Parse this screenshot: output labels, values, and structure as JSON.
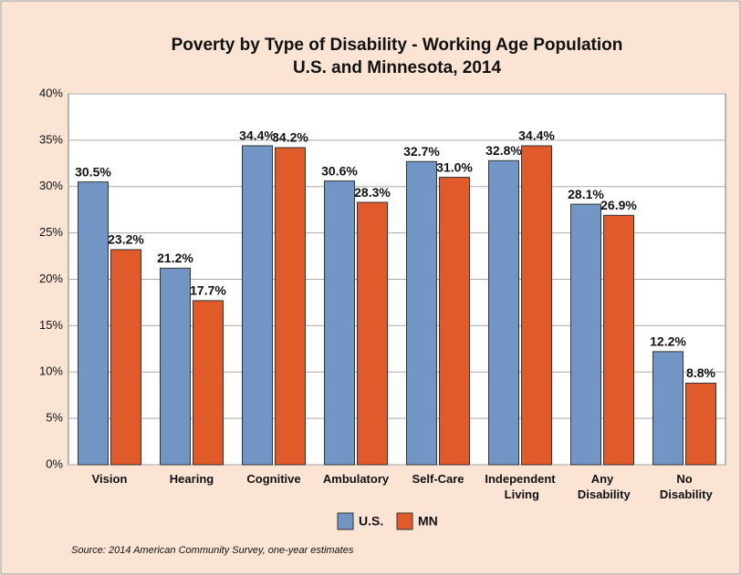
{
  "chart_data": {
    "type": "bar",
    "title": "Poverty by Type of Disability - Working Age Population",
    "subtitle": "U.S. and Minnesota, 2014",
    "categories": [
      "Vision",
      "Hearing",
      "Cognitive",
      "Ambulatory",
      "Self-Care",
      "Independent Living",
      "Any Disability",
      "No Disability"
    ],
    "series": [
      {
        "name": "U.S.",
        "color": "#7196c6",
        "values": [
          30.5,
          21.2,
          34.4,
          30.6,
          32.7,
          32.8,
          28.1,
          12.2
        ],
        "value_labels": [
          "30.5%",
          "21.2%",
          "34.4%",
          "30.6%",
          "32.7%",
          "32.8%",
          "28.1%",
          "12.2%"
        ]
      },
      {
        "name": "MN",
        "color": "#e05a2a",
        "values": [
          23.2,
          17.7,
          34.2,
          28.3,
          31.0,
          34.4,
          26.9,
          8.8
        ],
        "value_labels": [
          "23.2%",
          "17.7%",
          "34.2%",
          "28.3%",
          "31.0%",
          "34.4%",
          "26.9%",
          "8.8%"
        ]
      }
    ],
    "ylim": [
      0,
      40
    ],
    "yticks": [
      {
        "value": 0,
        "label": "0%"
      },
      {
        "value": 5,
        "label": "5%"
      },
      {
        "value": 10,
        "label": "10%"
      },
      {
        "value": 15,
        "label": "15%"
      },
      {
        "value": 20,
        "label": "20%"
      },
      {
        "value": 25,
        "label": "25%"
      },
      {
        "value": 30,
        "label": "30%"
      },
      {
        "value": 35,
        "label": "35%"
      },
      {
        "value": 40,
        "label": "40%"
      }
    ],
    "grid": true,
    "legend": "bottom",
    "source": "Source: 2014 American Community Survey, one-year estimates"
  }
}
